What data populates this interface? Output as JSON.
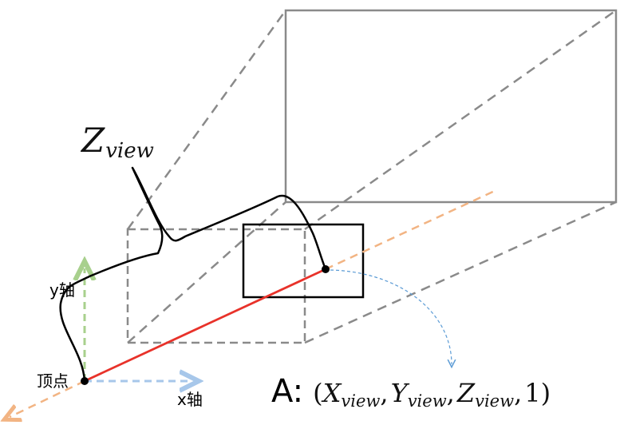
{
  "labels": {
    "z_view_main": "Z",
    "z_view_sub": "view",
    "y_axis": "y轴",
    "x_axis": "x轴",
    "vertex": "顶点",
    "point_prefix": "A:",
    "point_open": "(",
    "x_main": "X",
    "x_sub": "view",
    "sep1": ",",
    "y_main": "Y",
    "y_sub": "view",
    "sep2": ",",
    "z_main": "Z",
    "z_sub": "view",
    "sep3": ",",
    "w_value": "1",
    "point_close": ")"
  },
  "colors": {
    "frustum": "#8a8a8a",
    "curve": "#000000",
    "ray": "#e8322a",
    "ray_extension": "#f2b483",
    "y_axis": "#a8d08d",
    "x_axis": "#a7c7ea",
    "projection_arrow": "#5b9bd5"
  }
}
